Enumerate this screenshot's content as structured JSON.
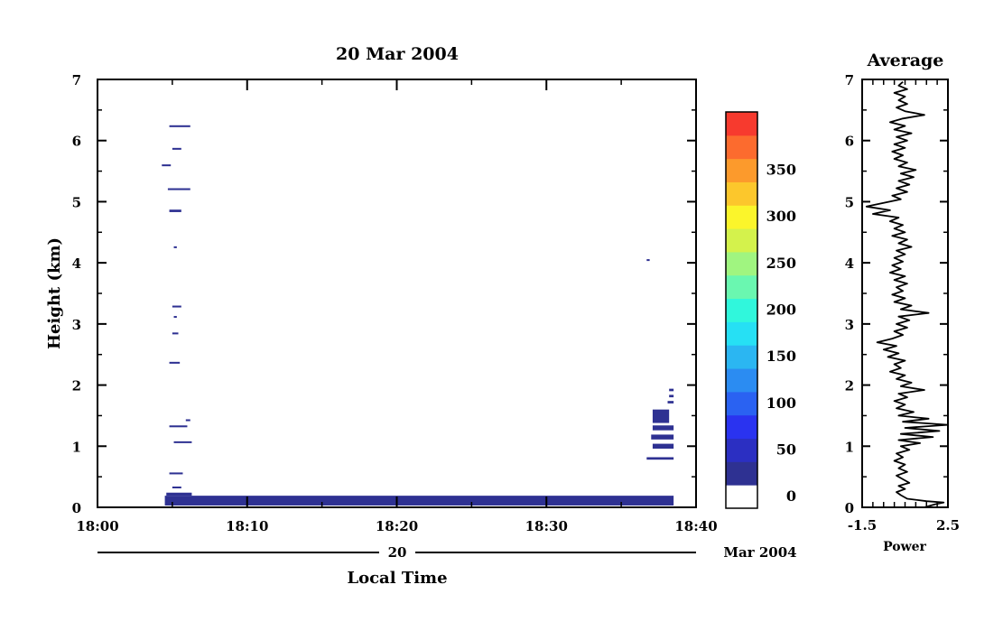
{
  "chart_data": [
    {
      "type": "heatmap",
      "title": "20 Mar 2004",
      "xlabel": "Local Time",
      "ylabel": "Height (km)",
      "date_day": "20",
      "date_month_year": "Mar 2004",
      "x_range": [
        "18:00",
        "18:40"
      ],
      "x_ticks": [
        "18:00",
        "18:10",
        "18:20",
        "18:30",
        "18:40"
      ],
      "ylim": [
        0,
        7
      ],
      "y_ticks": [
        "0",
        "1",
        "2",
        "3",
        "4",
        "5",
        "6",
        "7"
      ],
      "echo_segments": [
        {
          "t0": "18:04.5",
          "t1": "18:38.5",
          "h0": 0.03,
          "h1": 0.19
        },
        {
          "t0": "18:04.6",
          "t1": "18:06.3",
          "h0": 0.19,
          "h1": 0.24
        },
        {
          "t0": "18:05.0",
          "t1": "18:05.6",
          "h0": 0.32,
          "h1": 0.34
        },
        {
          "t0": "18:04.8",
          "t1": "18:05.7",
          "h0": 0.54,
          "h1": 0.57
        },
        {
          "t0": "18:05.1",
          "t1": "18:06.3",
          "h0": 1.06,
          "h1": 1.08
        },
        {
          "t0": "18:04.8",
          "t1": "18:06.0",
          "h0": 1.31,
          "h1": 1.34
        },
        {
          "t0": "18:05.9",
          "t1": "18:06.2",
          "h0": 1.41,
          "h1": 1.44
        },
        {
          "t0": "18:04.8",
          "t1": "18:05.5",
          "h0": 2.35,
          "h1": 2.38
        },
        {
          "t0": "18:05.0",
          "t1": "18:05.4",
          "h0": 2.83,
          "h1": 2.86
        },
        {
          "t0": "18:05.1",
          "t1": "18:05.3",
          "h0": 3.1,
          "h1": 3.13
        },
        {
          "t0": "18:05.0",
          "t1": "18:05.6",
          "h0": 3.27,
          "h1": 3.3
        },
        {
          "t0": "18:05.1",
          "t1": "18:05.3",
          "h0": 4.24,
          "h1": 4.27
        },
        {
          "t0": "18:04.8",
          "t1": "18:05.6",
          "h0": 4.83,
          "h1": 4.87
        },
        {
          "t0": "18:04.7",
          "t1": "18:06.2",
          "h0": 5.19,
          "h1": 5.22
        },
        {
          "t0": "18:04.3",
          "t1": "18:04.9",
          "h0": 5.58,
          "h1": 5.61
        },
        {
          "t0": "18:05.0",
          "t1": "18:05.6",
          "h0": 5.85,
          "h1": 5.88
        },
        {
          "t0": "18:04.8",
          "t1": "18:06.2",
          "h0": 6.22,
          "h1": 6.25
        },
        {
          "t0": "18:36.7",
          "t1": "18:36.9",
          "h0": 4.03,
          "h1": 4.06
        },
        {
          "t0": "18:36.7",
          "t1": "18:38.5",
          "h0": 0.78,
          "h1": 0.82
        },
        {
          "t0": "18:37.1",
          "t1": "18:38.5",
          "h0": 0.96,
          "h1": 1.04
        },
        {
          "t0": "18:37.0",
          "t1": "18:38.5",
          "h0": 1.11,
          "h1": 1.19
        },
        {
          "t0": "18:37.1",
          "t1": "18:38.5",
          "h0": 1.26,
          "h1": 1.34
        },
        {
          "t0": "18:37.1",
          "t1": "18:38.2",
          "h0": 1.38,
          "h1": 1.6
        },
        {
          "t0": "18:38.1",
          "t1": "18:38.5",
          "h0": 1.7,
          "h1": 1.74
        },
        {
          "t0": "18:38.2",
          "t1": "18:38.5",
          "h0": 1.8,
          "h1": 1.84
        },
        {
          "t0": "18:38.2",
          "t1": "18:38.5",
          "h0": 1.9,
          "h1": 1.94
        }
      ]
    },
    {
      "type": "colorbar",
      "ticks": [
        "0",
        "50",
        "100",
        "150",
        "200",
        "250",
        "300",
        "350"
      ],
      "levels": [
        {
          "label": "0",
          "color": "#ffffff"
        },
        {
          "color": "#2e3192"
        },
        {
          "color": "#2b2fc2"
        },
        {
          "color": "#2a33f0"
        },
        {
          "color": "#2a62f2"
        },
        {
          "color": "#2b8cf2"
        },
        {
          "color": "#2bb6f2"
        },
        {
          "color": "#26e0f4"
        },
        {
          "color": "#30f7dc"
        },
        {
          "color": "#6af7b0"
        },
        {
          "color": "#a0f580"
        },
        {
          "color": "#d4f24c"
        },
        {
          "color": "#fbf52b"
        },
        {
          "color": "#fcc72c"
        },
        {
          "color": "#fc9a2c"
        },
        {
          "color": "#fc6b2e"
        },
        {
          "color": "#f73a2e"
        }
      ]
    },
    {
      "type": "line",
      "title": "Average",
      "xlabel": "Power",
      "x_ticks": [
        "-1.5",
        "2.5"
      ],
      "xlim": [
        -1.5,
        2.5
      ],
      "ylim": [
        0,
        7
      ],
      "y_ticks": [
        "0",
        "1",
        "2",
        "3",
        "4",
        "5",
        "6",
        "7"
      ],
      "profile": [
        [
          1.4,
          0.0
        ],
        [
          1.9,
          0.05
        ],
        [
          2.3,
          0.08
        ],
        [
          1.5,
          0.1
        ],
        [
          0.6,
          0.14
        ],
        [
          0.3,
          0.2
        ],
        [
          0.1,
          0.25
        ],
        [
          0.5,
          0.3
        ],
        [
          0.2,
          0.35
        ],
        [
          0.7,
          0.4
        ],
        [
          0.4,
          0.46
        ],
        [
          0.1,
          0.52
        ],
        [
          0.6,
          0.58
        ],
        [
          0.2,
          0.64
        ],
        [
          0.5,
          0.7
        ],
        [
          0.0,
          0.76
        ],
        [
          0.4,
          0.82
        ],
        [
          0.1,
          0.88
        ],
        [
          0.7,
          0.94
        ],
        [
          0.3,
          1.0
        ],
        [
          1.2,
          1.05
        ],
        [
          0.2,
          1.1
        ],
        [
          1.8,
          1.15
        ],
        [
          0.3,
          1.2
        ],
        [
          2.1,
          1.25
        ],
        [
          0.5,
          1.3
        ],
        [
          2.5,
          1.35
        ],
        [
          0.4,
          1.4
        ],
        [
          1.6,
          1.45
        ],
        [
          0.2,
          1.5
        ],
        [
          0.9,
          1.56
        ],
        [
          0.1,
          1.62
        ],
        [
          0.5,
          1.68
        ],
        [
          0.0,
          1.74
        ],
        [
          0.6,
          1.8
        ],
        [
          0.2,
          1.86
        ],
        [
          1.4,
          1.92
        ],
        [
          0.3,
          1.98
        ],
        [
          0.8,
          2.04
        ],
        [
          0.1,
          2.1
        ],
        [
          0.5,
          2.16
        ],
        [
          -0.2,
          2.22
        ],
        [
          0.3,
          2.28
        ],
        [
          0.0,
          2.34
        ],
        [
          0.5,
          2.4
        ],
        [
          -0.3,
          2.46
        ],
        [
          0.2,
          2.52
        ],
        [
          -0.5,
          2.58
        ],
        [
          0.1,
          2.64
        ],
        [
          -0.8,
          2.7
        ],
        [
          -0.1,
          2.76
        ],
        [
          0.4,
          2.82
        ],
        [
          0.0,
          2.88
        ],
        [
          0.6,
          2.94
        ],
        [
          0.1,
          3.0
        ],
        [
          0.7,
          3.06
        ],
        [
          0.2,
          3.12
        ],
        [
          1.6,
          3.18
        ],
        [
          0.3,
          3.24
        ],
        [
          0.8,
          3.3
        ],
        [
          0.0,
          3.36
        ],
        [
          0.5,
          3.42
        ],
        [
          -0.1,
          3.48
        ],
        [
          0.4,
          3.54
        ],
        [
          0.1,
          3.6
        ],
        [
          0.6,
          3.66
        ],
        [
          0.0,
          3.72
        ],
        [
          0.5,
          3.78
        ],
        [
          -0.2,
          3.84
        ],
        [
          0.3,
          3.9
        ],
        [
          -0.1,
          3.96
        ],
        [
          0.4,
          4.02
        ],
        [
          0.0,
          4.08
        ],
        [
          0.5,
          4.14
        ],
        [
          0.1,
          4.2
        ],
        [
          0.8,
          4.26
        ],
        [
          0.2,
          4.32
        ],
        [
          0.6,
          4.38
        ],
        [
          -0.1,
          4.44
        ],
        [
          0.5,
          4.5
        ],
        [
          0.0,
          4.56
        ],
        [
          0.4,
          4.62
        ],
        [
          -0.2,
          4.68
        ],
        [
          0.2,
          4.74
        ],
        [
          -1.0,
          4.8
        ],
        [
          -0.2,
          4.86
        ],
        [
          -1.3,
          4.92
        ],
        [
          -0.5,
          4.98
        ],
        [
          0.3,
          5.04
        ],
        [
          -0.1,
          5.1
        ],
        [
          0.6,
          5.16
        ],
        [
          0.1,
          5.22
        ],
        [
          0.7,
          5.28
        ],
        [
          0.2,
          5.34
        ],
        [
          0.9,
          5.4
        ],
        [
          0.3,
          5.46
        ],
        [
          1.0,
          5.52
        ],
        [
          0.2,
          5.58
        ],
        [
          0.6,
          5.64
        ],
        [
          0.0,
          5.7
        ],
        [
          0.4,
          5.76
        ],
        [
          -0.1,
          5.82
        ],
        [
          0.5,
          5.88
        ],
        [
          0.0,
          5.94
        ],
        [
          0.6,
          6.0
        ],
        [
          0.1,
          6.06
        ],
        [
          0.8,
          6.12
        ],
        [
          0.0,
          6.18
        ],
        [
          0.5,
          6.24
        ],
        [
          -0.2,
          6.3
        ],
        [
          0.4,
          6.36
        ],
        [
          1.4,
          6.42
        ],
        [
          0.5,
          6.48
        ],
        [
          0.1,
          6.54
        ],
        [
          0.6,
          6.6
        ],
        [
          0.2,
          6.66
        ],
        [
          0.5,
          6.72
        ],
        [
          0.0,
          6.78
        ],
        [
          0.6,
          6.84
        ],
        [
          0.2,
          6.9
        ],
        [
          0.4,
          6.96
        ]
      ]
    }
  ]
}
